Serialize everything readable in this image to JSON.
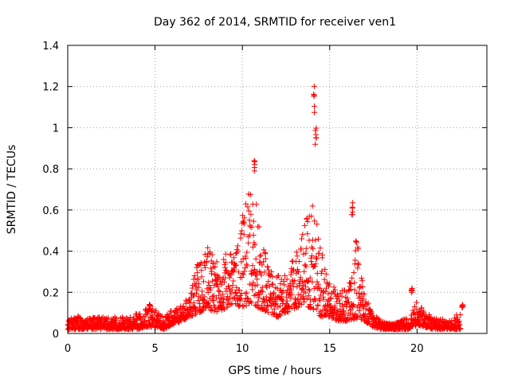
{
  "chart_data": {
    "type": "scatter",
    "title": "Day 362 of 2014, SRMTID for receiver ven1",
    "xlabel": "GPS time / hours",
    "ylabel": "SRMTID / TECUs",
    "xlim": [
      0,
      24
    ],
    "ylim": [
      0,
      1.4
    ],
    "grid": true,
    "marker": "+",
    "marker_color": "#ff0000",
    "xticks": [
      0,
      5,
      10,
      15,
      20
    ],
    "xtick_labels": [
      "0",
      "5",
      "10",
      "15",
      "20"
    ],
    "yticks": [
      0,
      0.2,
      0.4,
      0.6,
      0.8,
      1.0,
      1.2,
      1.4
    ],
    "ytick_labels": [
      "0",
      "0.2",
      "0.4",
      "0.6",
      "0.8",
      "1",
      "1.2",
      "1.4"
    ],
    "series": [
      {
        "name": "ven1",
        "envelope_x": [
          0,
          0.5,
          1,
          1.5,
          2,
          2.5,
          3,
          3.5,
          4,
          4.5,
          5,
          5.5,
          6,
          6.5,
          7,
          7.5,
          8,
          8.5,
          9,
          9.5,
          10,
          10.5,
          11,
          11.5,
          12,
          12.5,
          13,
          13.5,
          14,
          14.5,
          15,
          15.5,
          16,
          16.5,
          17,
          17.5,
          18,
          18.5,
          19,
          19.5,
          20,
          20.5,
          21,
          21.5,
          22,
          22.5
        ],
        "envelope_low": [
          0.02,
          0.02,
          0.02,
          0.02,
          0.02,
          0.02,
          0.02,
          0.02,
          0.02,
          0.03,
          0.03,
          0.02,
          0.04,
          0.06,
          0.08,
          0.1,
          0.12,
          0.1,
          0.12,
          0.15,
          0.12,
          0.15,
          0.12,
          0.1,
          0.08,
          0.1,
          0.12,
          0.14,
          0.12,
          0.08,
          0.08,
          0.06,
          0.06,
          0.07,
          0.06,
          0.03,
          0.02,
          0.02,
          0.02,
          0.02,
          0.04,
          0.03,
          0.02,
          0.02,
          0.02,
          0.02
        ],
        "envelope_high": [
          0.07,
          0.09,
          0.07,
          0.08,
          0.08,
          0.08,
          0.08,
          0.08,
          0.1,
          0.12,
          0.12,
          0.08,
          0.12,
          0.14,
          0.18,
          0.38,
          0.42,
          0.35,
          0.4,
          0.38,
          0.58,
          0.82,
          0.5,
          0.35,
          0.28,
          0.3,
          0.38,
          0.5,
          0.7,
          0.45,
          0.25,
          0.2,
          0.22,
          0.5,
          0.18,
          0.1,
          0.06,
          0.05,
          0.06,
          0.08,
          0.16,
          0.1,
          0.08,
          0.07,
          0.06,
          0.12
        ],
        "peaks": [
          {
            "x": 4.7,
            "y": 0.15
          },
          {
            "x": 10.7,
            "y": 0.88
          },
          {
            "x": 14.1,
            "y": 1.22
          },
          {
            "x": 14.2,
            "y": 1.0
          },
          {
            "x": 16.3,
            "y": 0.64
          },
          {
            "x": 19.7,
            "y": 0.22
          },
          {
            "x": 22.6,
            "y": 0.14
          }
        ]
      }
    ]
  }
}
